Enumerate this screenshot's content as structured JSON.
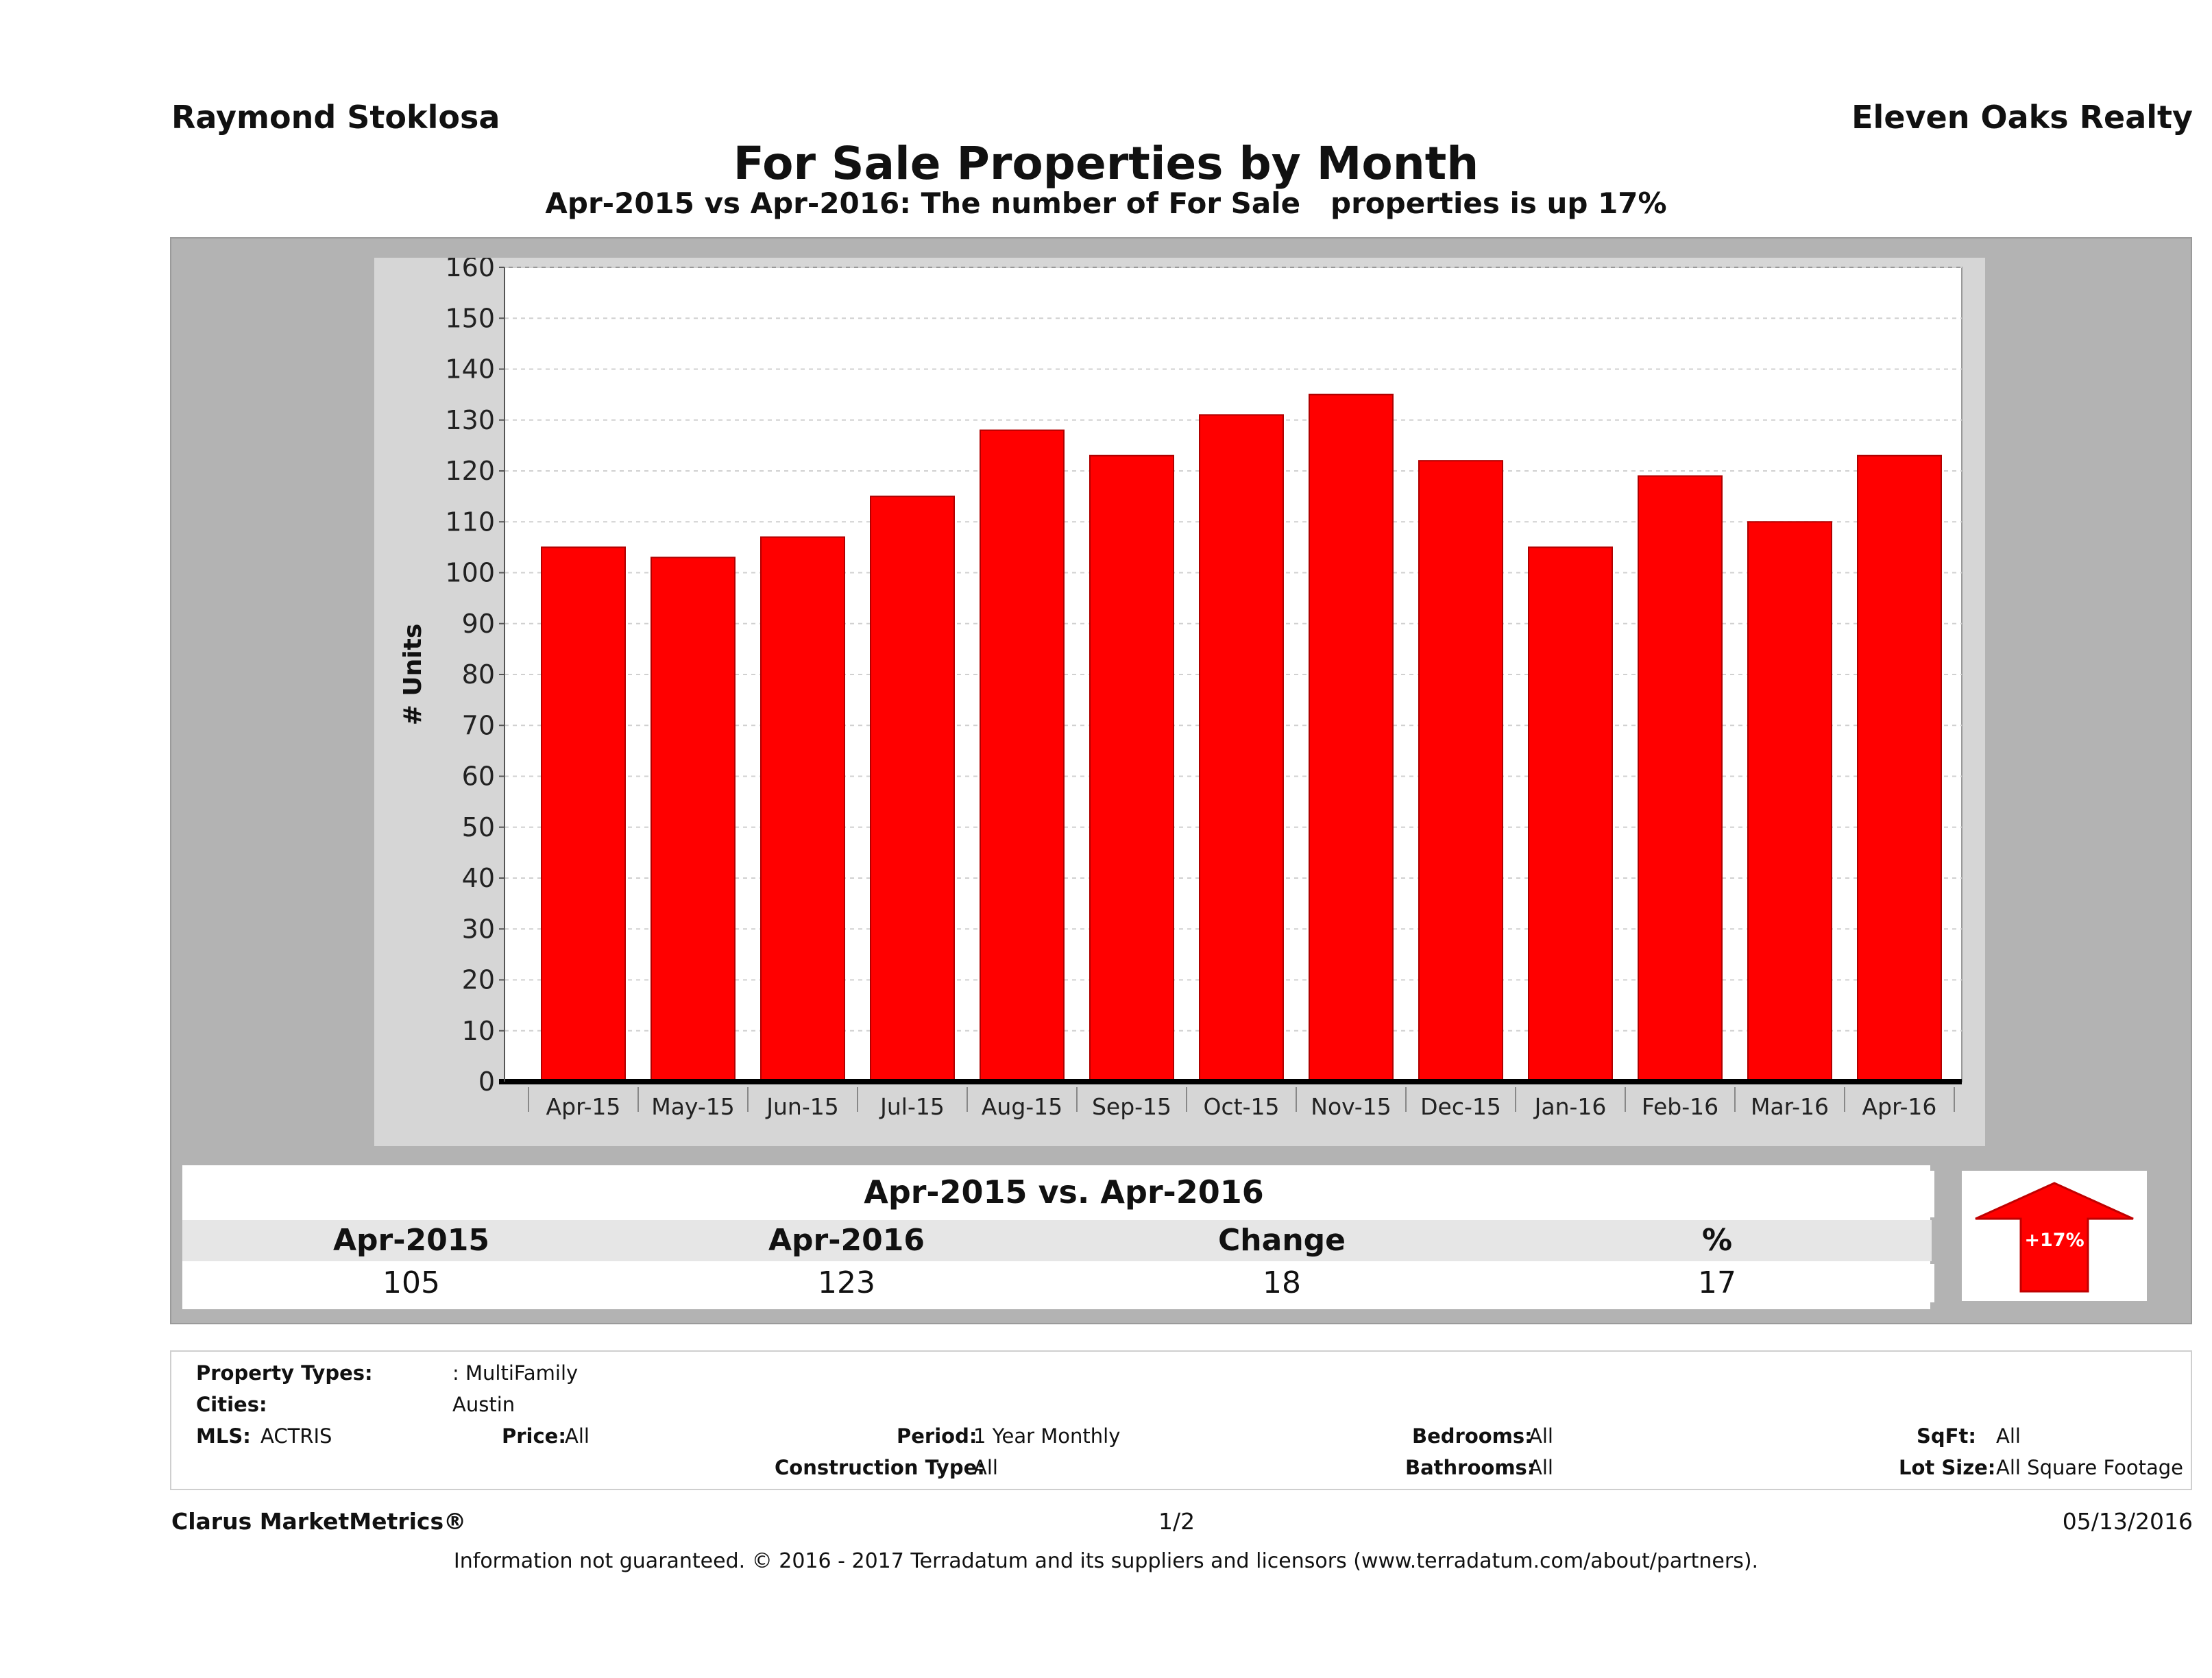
{
  "header": {
    "agent": "Raymond Stoklosa",
    "company": "Eleven Oaks Realty",
    "title": "For Sale Properties by Month",
    "subtitle": "Apr-2015 vs Apr-2016: The number of For Sale   properties is up 17%"
  },
  "chart_data": {
    "type": "bar",
    "categories": [
      "Apr-15",
      "May-15",
      "Jun-15",
      "Jul-15",
      "Aug-15",
      "Sep-15",
      "Oct-15",
      "Nov-15",
      "Dec-15",
      "Jan-16",
      "Feb-16",
      "Mar-16",
      "Apr-16"
    ],
    "values": [
      105,
      103,
      107,
      115,
      128,
      123,
      131,
      135,
      122,
      105,
      119,
      110,
      123
    ],
    "ylabel": "# Units",
    "ylim": [
      0,
      160
    ],
    "yticks": [
      0,
      10,
      20,
      30,
      40,
      50,
      60,
      70,
      80,
      90,
      100,
      110,
      120,
      130,
      140,
      150,
      160
    ],
    "grid": true,
    "bar_color": "#ff0000"
  },
  "comparison": {
    "title": "Apr-2015 vs. Apr-2016",
    "headers": [
      "Apr-2015",
      "Apr-2016",
      "Change",
      "%"
    ],
    "values": [
      "105",
      "123",
      "18",
      "17"
    ],
    "badge": "+17%",
    "badge_color": "#ff0000"
  },
  "filters": {
    "property_types_label": "Property Types:",
    "property_types_value": ": MultiFamily",
    "cities_label": "Cities:",
    "cities_value": "Austin",
    "mls_label": "MLS:",
    "mls_value": "ACTRIS",
    "price_label": "Price:",
    "price_value": "All",
    "period_label": "Period:",
    "period_value": "1 Year Monthly",
    "construction_label": "Construction Type:",
    "construction_value": "All",
    "bedrooms_label": "Bedrooms:",
    "bedrooms_value": "All",
    "bathrooms_label": "Bathrooms:",
    "bathrooms_value": "All",
    "sqft_label": "SqFt:",
    "sqft_value": "All",
    "lotsize_label": "Lot Size:",
    "lotsize_value": "All Square Footage"
  },
  "footer": {
    "brand": "Clarus MarketMetrics®",
    "page": "1/2",
    "date": "05/13/2016",
    "disclaimer": "Information not guaranteed. © 2016 - 2017 Terradatum and its suppliers and licensors (www.terradatum.com/about/partners)."
  }
}
